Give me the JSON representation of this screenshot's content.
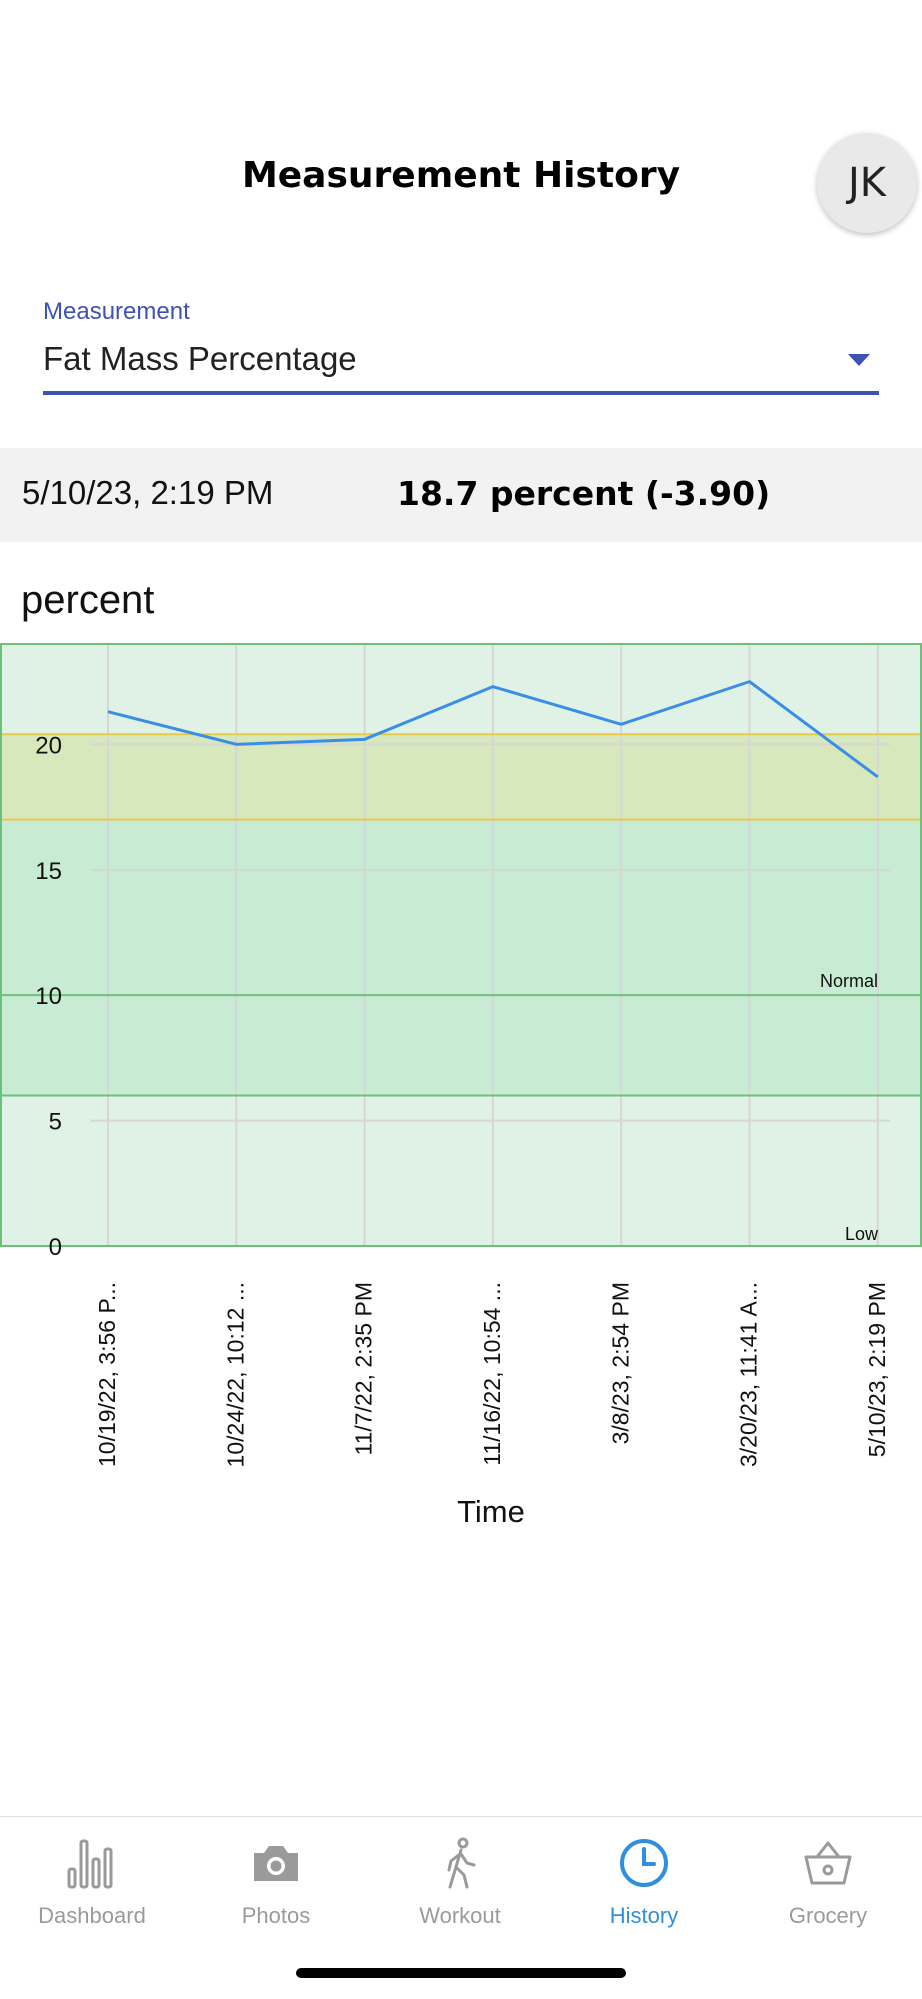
{
  "header": {
    "title": "Measurement History",
    "avatar_initials": "JK"
  },
  "measurement_select": {
    "label": "Measurement",
    "value": "Fat Mass Percentage"
  },
  "summary": {
    "date": "5/10/23, 2:19 PM",
    "value": "18.7 percent (-3.90)"
  },
  "chart_data": {
    "type": "line",
    "ylabel": "percent",
    "xlabel": "Time",
    "ylim": [
      0,
      24
    ],
    "y_ticks": [
      0,
      5,
      10,
      15,
      20
    ],
    "categories": [
      "10/19/22, 3:56 P...",
      "10/24/22, 10:12 ...",
      "11/7/22, 2:35 PM",
      "11/16/22, 10:54 ...",
      "3/8/23, 2:54 PM",
      "3/20/23, 11:41 A...",
      "5/10/23, 2:19 PM"
    ],
    "series": [
      {
        "name": "Fat Mass Percentage",
        "color": "#3a8ee6",
        "values": [
          21.3,
          20.0,
          20.2,
          22.3,
          20.8,
          22.5,
          18.7
        ]
      }
    ],
    "bands": [
      {
        "from": 0,
        "to": 6,
        "label": "Low",
        "color": "#e0f2e6"
      },
      {
        "from": 6,
        "to": 10,
        "label": "",
        "color": "#c8ebd4"
      },
      {
        "from": 10,
        "to": 17,
        "label": "Normal",
        "color": "#c8ebd4"
      },
      {
        "from": 17,
        "to": 20.4,
        "label": "",
        "color": "#d7e8bd"
      },
      {
        "from": 20.4,
        "to": 24,
        "label": "",
        "color": "#e0f2e6"
      }
    ]
  },
  "nav": {
    "items": [
      {
        "label": "Dashboard",
        "icon": "bar-chart-icon",
        "active": false
      },
      {
        "label": "Photos",
        "icon": "camera-icon",
        "active": false
      },
      {
        "label": "Workout",
        "icon": "walking-icon",
        "active": false
      },
      {
        "label": "History",
        "icon": "clock-icon",
        "active": true
      },
      {
        "label": "Grocery",
        "icon": "basket-icon",
        "active": false
      }
    ],
    "inactive_color": "#9a9a9a",
    "active_color": "#2f8fdc"
  }
}
